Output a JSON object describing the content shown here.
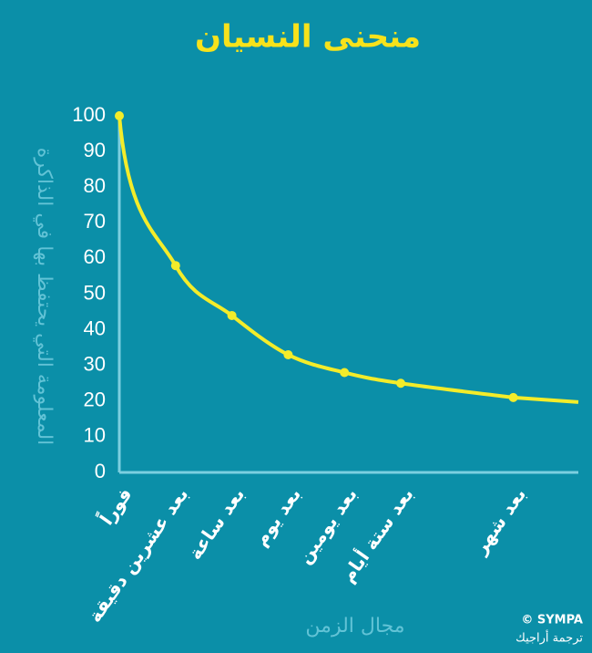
{
  "chart_data": {
    "type": "line",
    "title": "منحنى النسيان",
    "y_label": "المعلومة التي يحتفظ بها في الذاكرة",
    "x_label": "مجال الزمن",
    "categories": [
      "فوراً",
      "بعد عشرين دقيقة",
      "بعد ساعة",
      "بعد يوم",
      "بعد يومين",
      "بعد ستة أيام",
      "بعد شهر"
    ],
    "values": [
      100,
      58,
      44,
      33,
      28,
      25,
      21
    ],
    "color": "#f3ec2a",
    "ylim": [
      0,
      100
    ],
    "yticks": [
      0,
      10,
      20,
      30,
      40,
      50,
      60,
      70,
      80,
      90,
      100
    ],
    "grid": false
  },
  "credits": {
    "source": "© SYMPA",
    "translation": "ترجمة أراجيك"
  }
}
